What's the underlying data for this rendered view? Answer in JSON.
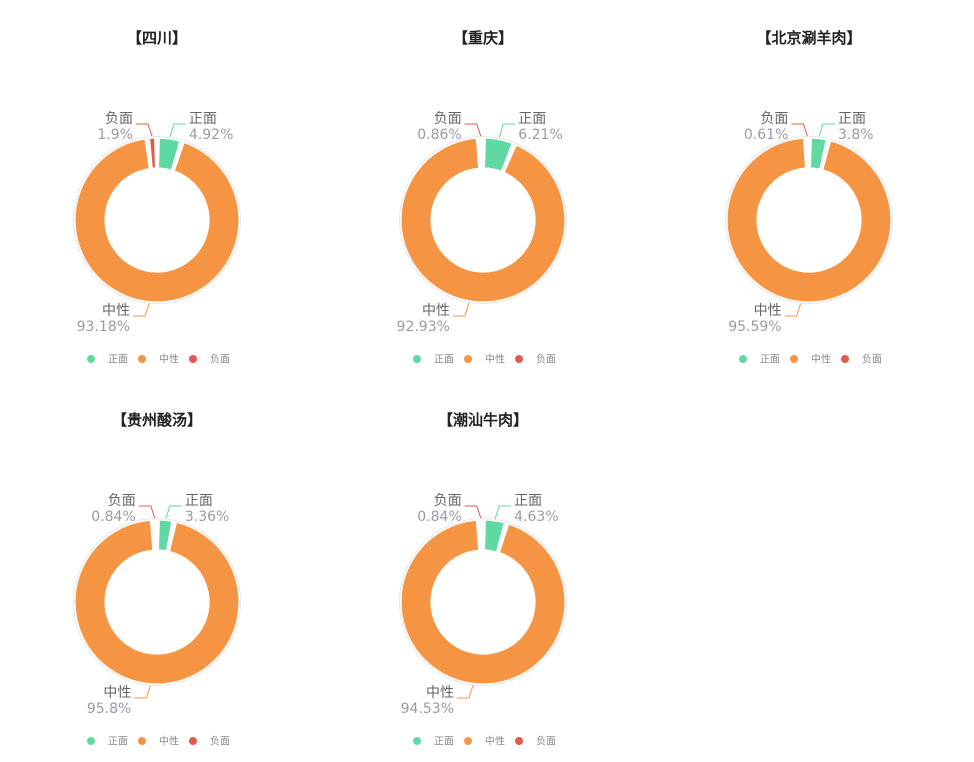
{
  "legend": [
    "正面",
    "中性",
    "负面"
  ],
  "colors": {
    "正面": "#5fd9a3",
    "中性": "#f59544",
    "负面": "#e05a4e"
  },
  "chart_data": [
    {
      "type": "pie",
      "title": "【四川】",
      "slices": [
        {
          "name": "正面",
          "value": 4.92,
          "label": "4.92%"
        },
        {
          "name": "中性",
          "value": 93.18,
          "label": "93.18%"
        },
        {
          "name": "负面",
          "value": 1.9,
          "label": "1.9%"
        }
      ]
    },
    {
      "type": "pie",
      "title": "【重庆】",
      "slices": [
        {
          "name": "正面",
          "value": 6.21,
          "label": "6.21%"
        },
        {
          "name": "中性",
          "value": 92.93,
          "label": "92.93%"
        },
        {
          "name": "负面",
          "value": 0.86,
          "label": "0.86%"
        }
      ]
    },
    {
      "type": "pie",
      "title": "【北京涮羊肉】",
      "slices": [
        {
          "name": "正面",
          "value": 3.8,
          "label": "3.8%"
        },
        {
          "name": "中性",
          "value": 95.59,
          "label": "95.59%"
        },
        {
          "name": "负面",
          "value": 0.61,
          "label": "0.61%"
        }
      ]
    },
    {
      "type": "pie",
      "title": "【贵州酸汤】",
      "slices": [
        {
          "name": "正面",
          "value": 3.36,
          "label": "3.36%"
        },
        {
          "name": "中性",
          "value": 95.8,
          "label": "95.8%"
        },
        {
          "name": "负面",
          "value": 0.84,
          "label": "0.84%"
        }
      ]
    },
    {
      "type": "pie",
      "title": "【潮汕牛肉】",
      "slices": [
        {
          "name": "正面",
          "value": 4.63,
          "label": "4.63%"
        },
        {
          "name": "中性",
          "value": 94.53,
          "label": "94.53%"
        },
        {
          "name": "负面",
          "value": 0.84,
          "label": "0.84%"
        }
      ]
    }
  ]
}
